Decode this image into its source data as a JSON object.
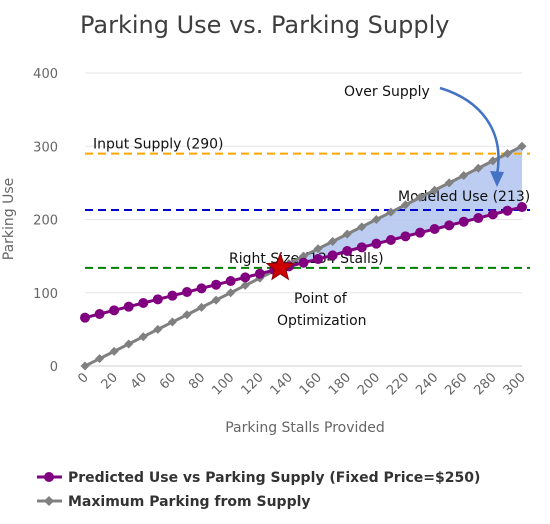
{
  "chart_data": {
    "type": "line",
    "title": "Parking Use vs. Parking Supply",
    "xlabel": "Parking Stalls Provided",
    "ylabel": "Parking Use",
    "xlim": [
      0,
      300
    ],
    "ylim": [
      0,
      400
    ],
    "x_ticks": [
      0,
      20,
      40,
      60,
      80,
      100,
      120,
      140,
      160,
      180,
      200,
      220,
      240,
      260,
      280,
      300
    ],
    "y_ticks": [
      0,
      100,
      200,
      300,
      400
    ],
    "grid": "horizontal",
    "legend_position": "bottom",
    "x": [
      0,
      10,
      20,
      30,
      40,
      50,
      60,
      70,
      80,
      90,
      100,
      110,
      120,
      130,
      140,
      150,
      160,
      170,
      180,
      190,
      200,
      210,
      220,
      230,
      240,
      250,
      260,
      270,
      280,
      290,
      300
    ],
    "series": [
      {
        "name": "Predicted Use vs Parking Supply (Fixed Price=$250)",
        "color": "#800080",
        "marker": "circle",
        "values": [
          66,
          71,
          76,
          81,
          86,
          91,
          96,
          101,
          106,
          111,
          116,
          121,
          126,
          131,
          136,
          141,
          146,
          151,
          157,
          162,
          167,
          172,
          177,
          182,
          187,
          192,
          197,
          202,
          207,
          212,
          217
        ]
      },
      {
        "name": "Maximum Parking from Supply",
        "color": "#808080",
        "marker": "diamond",
        "values": [
          0,
          10,
          20,
          30,
          40,
          50,
          60,
          70,
          80,
          90,
          100,
          110,
          120,
          130,
          140,
          150,
          160,
          170,
          180,
          190,
          200,
          210,
          220,
          230,
          240,
          250,
          260,
          270,
          280,
          290,
          300
        ]
      }
    ],
    "reference_lines": [
      {
        "label": "Input Supply (290)",
        "y": 290,
        "color": "#FFA500"
      },
      {
        "label": "Modeled Use (213)",
        "y": 213,
        "color": "#0000CD"
      },
      {
        "label": "Right Size (134 Stalls)",
        "y": 134,
        "color": "#008000"
      }
    ],
    "shaded_region": {
      "from_x": 134,
      "to_x": 300,
      "between": "series",
      "color": "#B0C4EE"
    },
    "optimization_point": {
      "x": 134,
      "y": 134,
      "marker": "star",
      "color": "#CC0000"
    },
    "annotations": [
      {
        "text": "Over Supply"
      },
      {
        "text": "Point of"
      },
      {
        "text": "Optimization"
      }
    ],
    "arrow_color": "#4472C4"
  }
}
